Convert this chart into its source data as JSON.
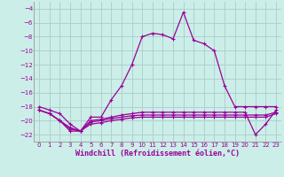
{
  "xlabel": "Windchill (Refroidissement éolien,°C)",
  "background_color": "#cceee8",
  "grid_color": "#aacccc",
  "line_color": "#990099",
  "xlim": [
    -0.5,
    23.5
  ],
  "ylim": [
    -23,
    -3
  ],
  "xticks": [
    0,
    1,
    2,
    3,
    4,
    5,
    6,
    7,
    8,
    9,
    10,
    11,
    12,
    13,
    14,
    15,
    16,
    17,
    18,
    19,
    20,
    21,
    22,
    23
  ],
  "yticks": [
    -4,
    -6,
    -8,
    -10,
    -12,
    -14,
    -16,
    -18,
    -20,
    -22
  ],
  "hours": [
    0,
    1,
    2,
    3,
    4,
    5,
    6,
    7,
    8,
    9,
    10,
    11,
    12,
    13,
    14,
    15,
    16,
    17,
    18,
    19,
    20,
    21,
    22,
    23
  ],
  "line_main": [
    -18.0,
    -18.5,
    -19.0,
    -20.5,
    -21.5,
    -19.5,
    -19.5,
    -17.0,
    -15.0,
    -12.0,
    -8.0,
    -7.5,
    -7.7,
    -8.3,
    -4.5,
    -8.5,
    -9.0,
    -10.0,
    -15.0,
    -18.0,
    -18.0,
    -18.0,
    -18.0,
    -18.0
  ],
  "line2": [
    -18.5,
    -19.0,
    -20.0,
    -21.0,
    -21.5,
    -20.0,
    -19.8,
    -19.5,
    -19.2,
    -19.0,
    -18.8,
    -18.8,
    -18.8,
    -18.8,
    -18.8,
    -18.8,
    -18.8,
    -18.8,
    -18.8,
    -18.8,
    -18.8,
    -22.0,
    -20.5,
    -18.5
  ],
  "line3": [
    -18.5,
    -19.0,
    -20.0,
    -21.2,
    -21.5,
    -20.2,
    -20.0,
    -19.7,
    -19.5,
    -19.3,
    -19.2,
    -19.2,
    -19.2,
    -19.2,
    -19.2,
    -19.2,
    -19.2,
    -19.2,
    -19.2,
    -19.2,
    -19.2,
    -19.2,
    -19.2,
    -18.8
  ],
  "line4": [
    -18.5,
    -19.0,
    -20.0,
    -21.5,
    -21.5,
    -20.5,
    -20.3,
    -20.0,
    -19.8,
    -19.6,
    -19.5,
    -19.5,
    -19.5,
    -19.5,
    -19.5,
    -19.5,
    -19.5,
    -19.5,
    -19.5,
    -19.5,
    -19.5,
    -19.5,
    -19.5,
    -19.0
  ]
}
